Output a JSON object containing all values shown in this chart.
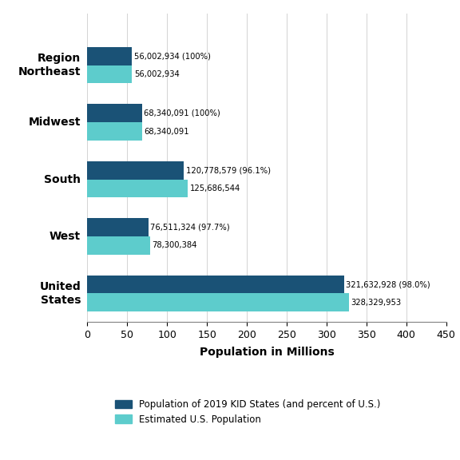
{
  "categories": [
    "Region\nNortheast",
    "Midwest",
    "South",
    "West",
    "United\nStates"
  ],
  "kid_values": [
    56002934,
    68340091,
    120778579,
    76511324,
    321632928
  ],
  "us_values": [
    56002934,
    68340091,
    125686544,
    78300384,
    328329953
  ],
  "kid_labels": [
    "56,002,934 (100%)",
    "68,340,091 (100%)",
    "120,778,579 (96.1%)",
    "76,511,324 (97.7%)",
    "321,632,928 (98.0%)"
  ],
  "us_labels": [
    "56,002,934",
    "68,340,091",
    "125,686,544",
    "78,300,384",
    "328,329,953"
  ],
  "kid_color": "#1a5276",
  "us_color": "#5dcccc",
  "xlabel": "Population in Millions",
  "xlim_max": 450000000,
  "xticks": [
    0,
    50000000,
    100000000,
    150000000,
    200000000,
    250000000,
    300000000,
    350000000,
    400000000,
    450000000
  ],
  "xtick_labels": [
    "0",
    "50",
    "100",
    "150",
    "200",
    "250",
    "300",
    "350",
    "400",
    "450"
  ],
  "legend_kid": "Population of 2019 KID States (and percent of U.S.)",
  "legend_us": "Estimated U.S. Population",
  "bar_height": 0.32
}
